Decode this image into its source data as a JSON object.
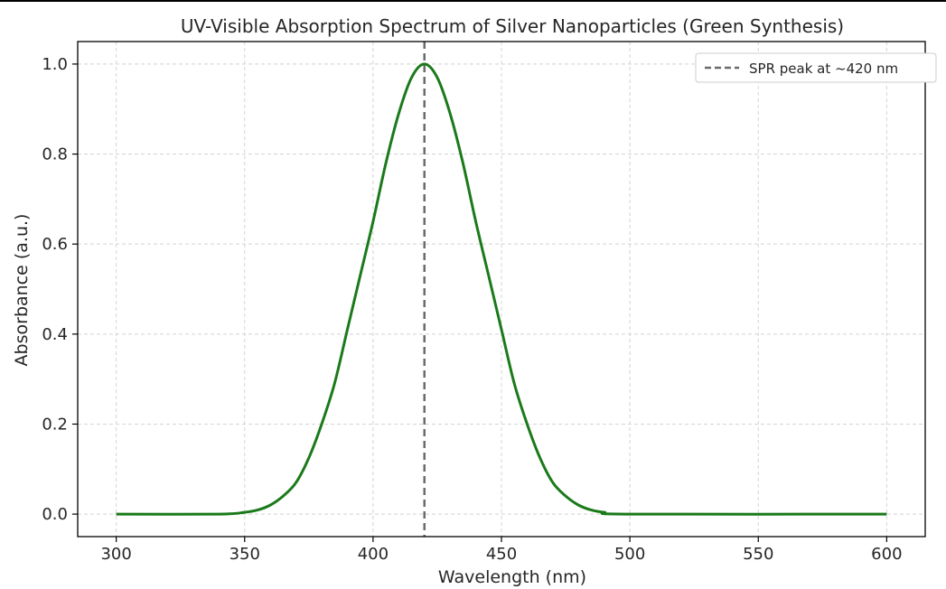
{
  "chart_data": {
    "type": "line",
    "title": "UV-Visible Absorption Spectrum of Silver Nanoparticles (Green Synthesis)",
    "xlabel": "Wavelength (nm)",
    "ylabel": "Absorbance (a.u.)",
    "xlim": [
      285,
      615
    ],
    "ylim": [
      -0.05,
      1.05
    ],
    "xticks": [
      300,
      350,
      400,
      450,
      500,
      550,
      600
    ],
    "xtick_labels": [
      "300",
      "350",
      "400",
      "450",
      "500",
      "550",
      "600"
    ],
    "yticks": [
      0.0,
      0.2,
      0.4,
      0.6,
      0.8,
      1.0
    ],
    "ytick_labels": [
      "0.0",
      "0.2",
      "0.4",
      "0.6",
      "0.8",
      "1.0"
    ],
    "grid": true,
    "legend_position": "top-right",
    "series": [
      {
        "color": "#1a7a1a",
        "x": [
          300,
          340,
          350,
          355,
          360,
          365,
          370,
          375,
          380,
          385,
          390,
          395,
          400,
          405,
          410,
          415,
          420,
          425,
          430,
          435,
          440,
          445,
          450,
          455,
          460,
          465,
          470,
          475,
          480,
          485,
          490,
          500,
          600
        ],
        "y": [
          0.0,
          0.0,
          0.004,
          0.009,
          0.02,
          0.04,
          0.07,
          0.125,
          0.2,
          0.29,
          0.41,
          0.53,
          0.65,
          0.78,
          0.89,
          0.97,
          1.0,
          0.97,
          0.89,
          0.78,
          0.65,
          0.53,
          0.41,
          0.29,
          0.2,
          0.125,
          0.07,
          0.04,
          0.02,
          0.009,
          0.004,
          0.0,
          0.0
        ]
      }
    ],
    "vlines": [
      {
        "x": 420,
        "label": "SPR peak at ~420 nm",
        "color": "#6b6b6b",
        "style": "dashed"
      }
    ]
  }
}
